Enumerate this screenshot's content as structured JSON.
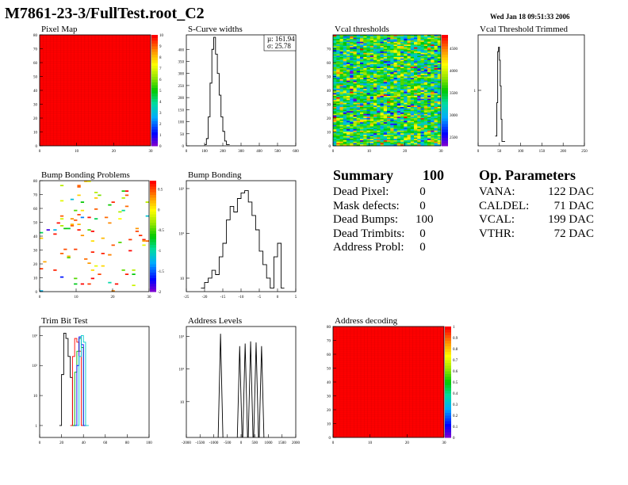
{
  "header": {
    "title": "M7861-23-3/FullTest.root_C2",
    "date": "Wed Jan 18 09:51:33 2006"
  },
  "summary": {
    "title": "Summary",
    "total": "100",
    "rows": [
      {
        "label": "Dead Pixel:",
        "value": "0"
      },
      {
        "label": "Mask defects:",
        "value": "0"
      },
      {
        "label": "Dead Bumps:",
        "value": "100"
      },
      {
        "label": "Dead Trimbits:",
        "value": "0"
      },
      {
        "label": "Address Probl:",
        "value": "0"
      }
    ]
  },
  "op_params": {
    "title": "Op. Parameters",
    "rows": [
      {
        "label": "VANA:",
        "value": "122 DAC"
      },
      {
        "label": "CALDEL:",
        "value": "71 DAC"
      },
      {
        "label": "VCAL:",
        "value": "199 DAC"
      },
      {
        "label": "VTHR:",
        "value": "72 DAC"
      }
    ]
  },
  "chart_data": [
    {
      "type": "heatmap",
      "title": "Pixel Map",
      "xlim": [
        0,
        32
      ],
      "ylim": [
        0,
        80
      ],
      "xticks": [
        "0",
        "10",
        "20",
        "30"
      ],
      "yticks": [
        "0",
        "10",
        "20",
        "30",
        "40",
        "50",
        "60",
        "70",
        "80"
      ],
      "zlim": [
        0,
        10
      ],
      "zticks": [
        "0",
        "1",
        "2",
        "3",
        "4",
        "5",
        "6",
        "7",
        "8",
        "9",
        "10"
      ],
      "fill_value": 10
    },
    {
      "type": "line",
      "title": "S-Curve widths",
      "xlim": [
        0,
        600
      ],
      "ylim": [
        0,
        460
      ],
      "xticks": [
        "0",
        "100",
        "200",
        "300",
        "400",
        "500",
        "600"
      ],
      "yticks": [
        "0",
        "50",
        "100",
        "150",
        "200",
        "250",
        "300",
        "350",
        "400"
      ],
      "stats": {
        "mean": "µ: 161.94",
        "sigma": "σ: 25.78"
      },
      "x": [
        100,
        110,
        120,
        130,
        140,
        150,
        160,
        170,
        180,
        190,
        200,
        210,
        220
      ],
      "y": [
        5,
        30,
        120,
        260,
        400,
        450,
        380,
        300,
        210,
        120,
        60,
        20,
        5
      ]
    },
    {
      "type": "heatmap",
      "title": "Vcal thresholds",
      "xlim": [
        0,
        32
      ],
      "ylim": [
        0,
        80
      ],
      "xticks": [
        "0",
        "10",
        "20",
        "30"
      ],
      "yticks": [
        "0",
        "10",
        "20",
        "30",
        "40",
        "50",
        "60",
        "70"
      ],
      "zlim": [
        2300,
        4800
      ],
      "zticks": [
        "2500",
        "3000",
        "3500",
        "4000",
        "4500"
      ],
      "mean": 3500,
      "sigma": 450
    },
    {
      "type": "line",
      "title": "Vcal Threshold Trimmed",
      "xlim": [
        0,
        250
      ],
      "ylog": true,
      "ylim": [
        0.1,
        10
      ],
      "xticks": [
        "0",
        "50",
        "100",
        "150",
        "200",
        "250"
      ],
      "yticks": [
        "1"
      ],
      "x": [
        40,
        44,
        46,
        48,
        50,
        52,
        54,
        56
      ],
      "y": [
        0.15,
        0.6,
        5,
        6,
        3.5,
        1.2,
        0.3,
        0.12
      ]
    },
    {
      "type": "heatmap",
      "title": "Bump Bonding Problems",
      "xlim": [
        0,
        32
      ],
      "ylim": [
        0,
        80
      ],
      "xticks": [
        "0",
        "10",
        "20",
        "30"
      ],
      "yticks": [
        "0",
        "10",
        "20",
        "30",
        "40",
        "50",
        "60",
        "70",
        "80"
      ],
      "zlim": [
        -2,
        0.7
      ],
      "zticks": [
        "-2",
        "-1.5",
        "-1",
        "-0.5",
        "0",
        "0.5"
      ],
      "count": 100
    },
    {
      "type": "line",
      "title": "Bump Bonding",
      "xlim": [
        -25,
        5
      ],
      "ylog": true,
      "ylim": [
        5,
        1500
      ],
      "xticks": [
        "-25",
        "-20",
        "-15",
        "-10",
        "-5",
        "0",
        "5"
      ],
      "yticks": [
        "10",
        "10²",
        "10³"
      ],
      "x": [
        -21,
        -20,
        -19,
        -18,
        -17,
        -16,
        -15,
        -14,
        -13,
        -12,
        -11,
        -10,
        -9,
        -8,
        -7,
        -6,
        -5,
        -4,
        -3,
        -2,
        -1,
        0,
        1
      ],
      "y": [
        6,
        8,
        10,
        15,
        12,
        30,
        60,
        200,
        400,
        300,
        600,
        800,
        900,
        500,
        250,
        120,
        40,
        20,
        10,
        6,
        30,
        60,
        6
      ]
    },
    {
      "type": "line",
      "title": "Trim Bit Test",
      "xlim": [
        0,
        100
      ],
      "ylog": true,
      "ylim": [
        0.4,
        2000
      ],
      "xticks": [
        "0",
        "20",
        "40",
        "60",
        "80",
        "100"
      ],
      "yticks": [
        "1",
        "10",
        "10²",
        "10³"
      ],
      "series": [
        {
          "color": "#000000",
          "x": [
            18,
            20,
            22,
            24,
            26,
            28,
            30
          ],
          "y": [
            1,
            50,
            1200,
            800,
            200,
            40,
            1
          ]
        },
        {
          "color": "#ff0000",
          "x": [
            28,
            30,
            32,
            34,
            36,
            38
          ],
          "y": [
            1,
            200,
            800,
            600,
            300,
            1
          ]
        },
        {
          "color": "#00aa00",
          "x": [
            30,
            32,
            34,
            36,
            38,
            40
          ],
          "y": [
            1,
            60,
            300,
            800,
            400,
            1
          ]
        },
        {
          "color": "#0000ff",
          "x": [
            32,
            34,
            36,
            38,
            40
          ],
          "y": [
            1,
            100,
            900,
            500,
            1
          ]
        },
        {
          "color": "#00cccc",
          "x": [
            34,
            36,
            38,
            40,
            42
          ],
          "y": [
            1,
            200,
            1000,
            600,
            1
          ]
        }
      ]
    },
    {
      "type": "line",
      "title": "Address Levels",
      "xlim": [
        -2000,
        2000
      ],
      "ylog": true,
      "ylim": [
        0.8,
        2000
      ],
      "xticks": [
        "-2000",
        "-1500",
        "-1000",
        "-500",
        "0",
        "500",
        "1000",
        "1500",
        "2000"
      ],
      "yticks": [
        "10",
        "10²",
        "10³"
      ],
      "peaks": [
        {
          "x": -750,
          "y": 1200
        },
        {
          "x": -50,
          "y": 500
        },
        {
          "x": 150,
          "y": 600
        },
        {
          "x": 350,
          "y": 700
        },
        {
          "x": 550,
          "y": 650
        },
        {
          "x": 750,
          "y": 500
        }
      ]
    },
    {
      "type": "heatmap",
      "title": "Address decoding",
      "xlim": [
        0,
        32
      ],
      "ylim": [
        0,
        80
      ],
      "xticks": [
        "0",
        "10",
        "20",
        "30"
      ],
      "yticks": [
        "0",
        "10",
        "20",
        "30",
        "40",
        "50",
        "60",
        "70",
        "80"
      ],
      "zlim": [
        0,
        1
      ],
      "zticks": [
        "0",
        "0.1",
        "0.2",
        "0.3",
        "0.4",
        "0.5",
        "0.6",
        "0.7",
        "0.8",
        "0.9",
        "1"
      ],
      "fill_value": 1
    }
  ]
}
